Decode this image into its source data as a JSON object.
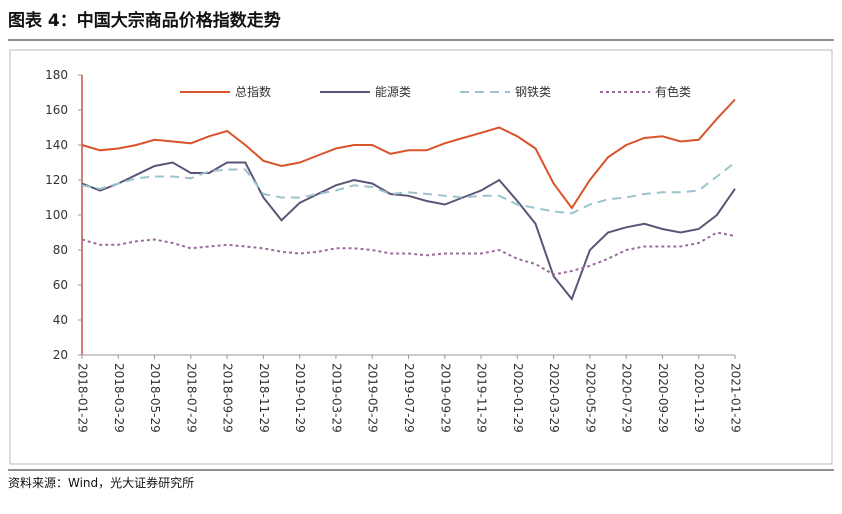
{
  "chart_data": {
    "type": "line",
    "title": "图表 4：中国大宗商品价格指数走势",
    "source": "资料来源：Wind，光大证券研究所",
    "categories": [
      "2018-01-29",
      null,
      "2018-03-29",
      null,
      "2018-05-29",
      null,
      "2018-07-29",
      null,
      "2018-09-29",
      null,
      "2018-11-29",
      null,
      "2019-01-29",
      null,
      "2019-03-29",
      null,
      "2019-05-29",
      null,
      "2019-07-29",
      null,
      "2019-09-29",
      null,
      "2019-11-29",
      null,
      "2020-01-29",
      null,
      "2020-03-29",
      null,
      "2020-05-29",
      null,
      "2020-07-29",
      null,
      "2020-09-29",
      null,
      "2020-11-29",
      null,
      "2021-01-29"
    ],
    "series": [
      {
        "name": "总指数",
        "color": "#d9532c",
        "dash": "none",
        "values": [
          140,
          137,
          138,
          140,
          143,
          142,
          141,
          145,
          148,
          140,
          131,
          128,
          130,
          134,
          138,
          140,
          140,
          135,
          137,
          137,
          141,
          144,
          147,
          150,
          145,
          138,
          118,
          104,
          120,
          133,
          140,
          144,
          145,
          142,
          143,
          155,
          166
        ]
      },
      {
        "name": "能源类",
        "color": "#5b5577",
        "dash": "none",
        "values": [
          118,
          114,
          118,
          123,
          128,
          130,
          124,
          124,
          130,
          130,
          110,
          97,
          107,
          112,
          117,
          120,
          118,
          112,
          111,
          108,
          106,
          110,
          114,
          120,
          108,
          95,
          65,
          52,
          80,
          90,
          93,
          95,
          92,
          90,
          92,
          100,
          115
        ]
      },
      {
        "name": "钢铁类",
        "color": "#9cc4cc",
        "dash": "9 6",
        "values": [
          117,
          115,
          118,
          121,
          122,
          122,
          121,
          125,
          126,
          126,
          112,
          110,
          110,
          112,
          114,
          117,
          116,
          112,
          113,
          112,
          111,
          110,
          111,
          111,
          106,
          104,
          102,
          101,
          106,
          109,
          110,
          112,
          113,
          113,
          114,
          122,
          130
        ]
      },
      {
        "name": "有色类",
        "color": "#9b6b9b",
        "dash": "3 3",
        "values": [
          86,
          83,
          83,
          85,
          86,
          84,
          81,
          82,
          83,
          82,
          81,
          79,
          78,
          79,
          81,
          81,
          80,
          78,
          78,
          77,
          78,
          78,
          78,
          80,
          75,
          72,
          66,
          68,
          71,
          75,
          80,
          82,
          82,
          82,
          84,
          90,
          88
        ]
      }
    ],
    "ylim": [
      20,
      180
    ],
    "yticks": [
      20,
      40,
      60,
      80,
      100,
      120,
      140,
      160,
      180
    ],
    "grid": false,
    "legend": "top"
  }
}
